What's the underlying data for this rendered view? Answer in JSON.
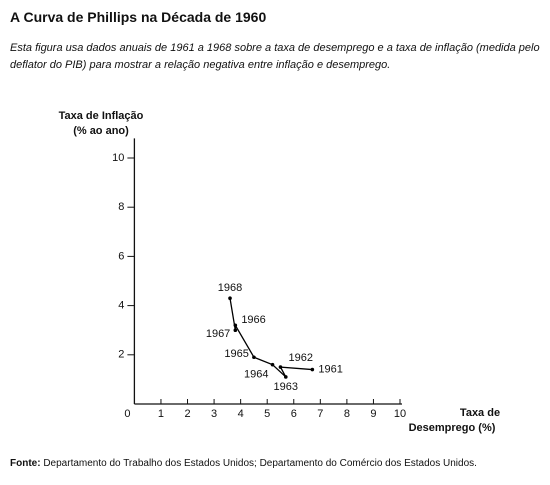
{
  "chart_data": {
    "type": "line",
    "title": "A Curva de Phillips na Década de 1960",
    "subtitle": "Esta figura usa dados anuais de 1961 a 1968 sobre a taxa de desemprego e a taxa de inflação (medida pelo deflator do PIB) para mostrar a relação negativa entre inflação e desemprego.",
    "ylabel": [
      "Taxa de Inflação",
      "(% ao ano)"
    ],
    "xlabel": [
      "Taxa de",
      "Desemprego (%)"
    ],
    "source_label": "Fonte:",
    "source": "Departamento do Trabalho dos Estados Unidos; Departamento do Comércio dos Estados Unidos.",
    "point_labels": [
      "1961",
      "1962",
      "1963",
      "1964",
      "1965",
      "1966",
      "1967",
      "1968"
    ],
    "x": [
      6.7,
      5.5,
      5.7,
      5.2,
      4.5,
      3.8,
      3.8,
      3.6
    ],
    "values": [
      1.4,
      1.5,
      1.1,
      1.6,
      1.9,
      3.2,
      3.0,
      4.3
    ],
    "color": "#000000",
    "xlim": [
      0,
      10
    ],
    "ylim": [
      0,
      10.8
    ],
    "xticks": [
      0,
      1,
      2,
      3,
      4,
      5,
      6,
      7,
      8,
      9,
      10
    ],
    "yticks": [
      2,
      4,
      6,
      8,
      10
    ]
  }
}
